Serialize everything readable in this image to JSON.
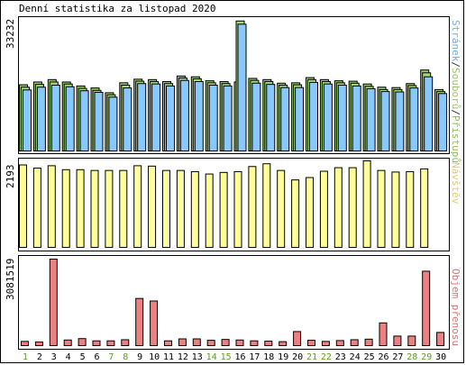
{
  "window": {
    "title": "Denní statistika za listopad 2020"
  },
  "legends": {
    "top": {
      "parts": [
        "Stránek",
        "/",
        "Souborů",
        "/",
        "Přístupů"
      ],
      "colors": [
        "#6db0f0",
        "#333333",
        "#98c868",
        "#333333",
        "#90c050"
      ]
    },
    "middle": {
      "text": "Návštěv",
      "color": "#d8d070"
    },
    "bottom": {
      "text": "Objem přenosu",
      "color": "#e07070"
    }
  },
  "axis_max_labels": {
    "top": "33232",
    "middle": "2193",
    "bottom": "3081519"
  },
  "colors": {
    "pages": "#88c8ff",
    "files": "#a0d878",
    "hits": "#98c868",
    "visits": "#ffff99",
    "kbytes": "#f08080",
    "weekend_label": "#5aa020",
    "weekday_label": "#000000"
  },
  "chart_data": [
    {
      "type": "bar",
      "title": "Denní statistika za listopad 2020",
      "categories": [
        "1",
        "2",
        "3",
        "4",
        "5",
        "6",
        "7",
        "8",
        "9",
        "10",
        "11",
        "12",
        "13",
        "14",
        "15",
        "16",
        "17",
        "18",
        "19",
        "20",
        "21",
        "22",
        "23",
        "24",
        "25",
        "26",
        "27",
        "28",
        "29",
        "30"
      ],
      "weekend_days": [
        "1",
        "7",
        "8",
        "14",
        "15",
        "21",
        "22",
        "28",
        "29"
      ],
      "ylim": [
        0,
        33232
      ],
      "legend": "right (vertical)",
      "series": [
        {
          "name": "Přístupů",
          "values": [
            16600,
            17300,
            17900,
            17300,
            16300,
            15800,
            14600,
            17100,
            18000,
            17900,
            17400,
            18800,
            18600,
            17600,
            17400,
            17300,
            18200,
            17900,
            17000,
            17100,
            18400,
            17900,
            17600,
            17500,
            16800,
            16000,
            15900,
            16900,
            20300,
            15400
          ]
        },
        {
          "name": "Souborů",
          "values": [
            16000,
            16700,
            17300,
            16800,
            15700,
            15200,
            14100,
            16500,
            17500,
            17400,
            16900,
            18300,
            18100,
            17100,
            16900,
            32600,
            17700,
            17400,
            16500,
            16600,
            17900,
            17400,
            17100,
            17000,
            16200,
            15400,
            15400,
            16400,
            19600,
            14900
          ]
        },
        {
          "name": "Stránek",
          "values": [
            15300,
            16000,
            16500,
            16100,
            15100,
            14700,
            13500,
            15800,
            16900,
            16800,
            16300,
            17700,
            17400,
            16500,
            16300,
            31800,
            17000,
            16700,
            15900,
            15900,
            17200,
            16800,
            16500,
            16300,
            15600,
            14900,
            14800,
            15800,
            18600,
            14400
          ]
        }
      ]
    },
    {
      "type": "bar",
      "categories": [
        "1",
        "2",
        "3",
        "4",
        "5",
        "6",
        "7",
        "8",
        "9",
        "10",
        "11",
        "12",
        "13",
        "14",
        "15",
        "16",
        "17",
        "18",
        "19",
        "20",
        "21",
        "22",
        "23",
        "24",
        "25",
        "26",
        "27",
        "28",
        "29",
        "30"
      ],
      "ylim": [
        0,
        2193
      ],
      "series": [
        {
          "name": "Návštěv",
          "values": [
            2090,
            2010,
            2070,
            1970,
            1970,
            1950,
            1950,
            1950,
            2070,
            2060,
            1950,
            1950,
            1920,
            1860,
            1900,
            1920,
            2050,
            2120,
            1950,
            1710,
            1770,
            1930,
            2020,
            2020,
            2193,
            1950,
            1910,
            1920,
            1990,
            0
          ]
        }
      ]
    },
    {
      "type": "bar",
      "categories": [
        "1",
        "2",
        "3",
        "4",
        "5",
        "6",
        "7",
        "8",
        "9",
        "10",
        "11",
        "12",
        "13",
        "14",
        "15",
        "16",
        "17",
        "18",
        "19",
        "20",
        "21",
        "22",
        "23",
        "24",
        "25",
        "26",
        "27",
        "28",
        "29",
        "30"
      ],
      "ylim": [
        0,
        3081519
      ],
      "series": [
        {
          "name": "Objem přenosu",
          "values": [
            150000,
            130000,
            3081519,
            200000,
            250000,
            170000,
            170000,
            210000,
            1680000,
            1590000,
            170000,
            240000,
            240000,
            190000,
            220000,
            200000,
            170000,
            160000,
            140000,
            500000,
            190000,
            150000,
            180000,
            210000,
            230000,
            810000,
            340000,
            340000,
            2650000,
            470000
          ]
        }
      ]
    }
  ]
}
